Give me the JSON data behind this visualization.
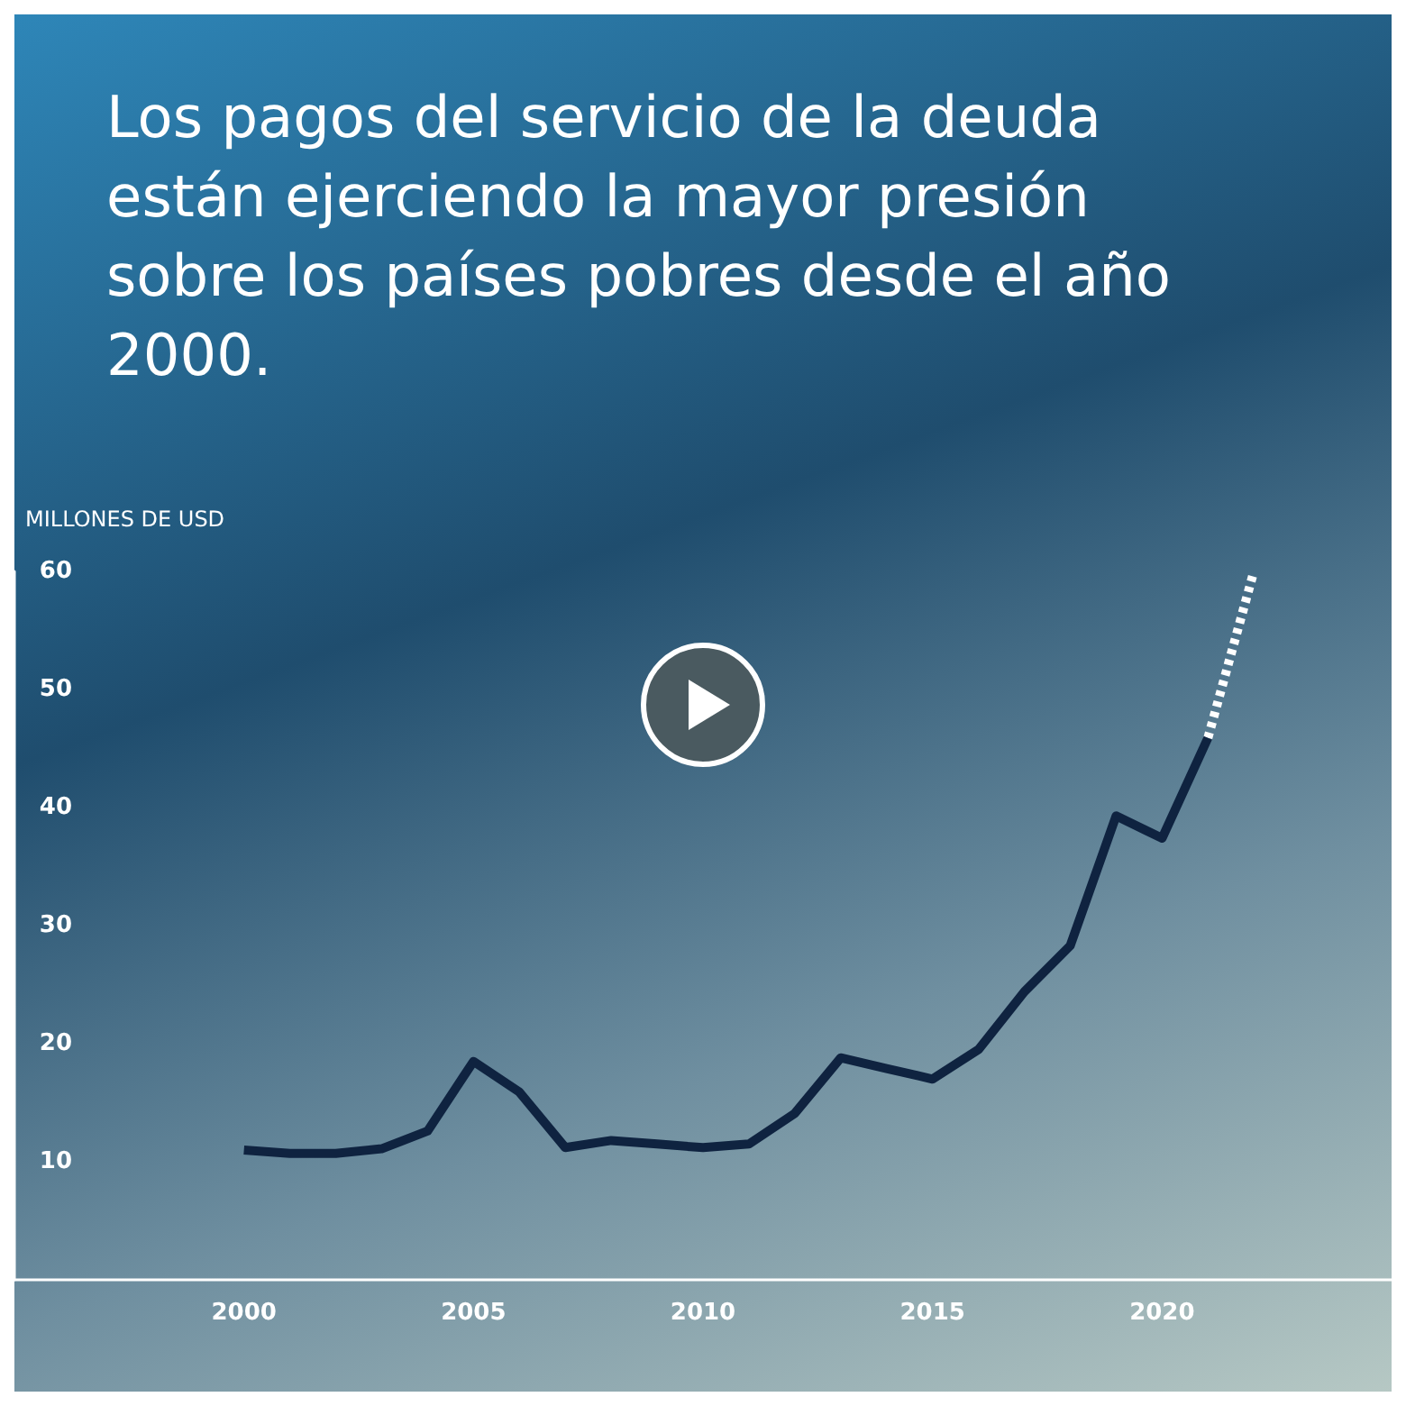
{
  "chart_data": {
    "type": "line",
    "title": "Los pagos del servicio de la deuda están ejerciendo la mayor presión sobre los países pobres desde el año 2000.",
    "ylabel": "MILLONES DE USD",
    "series": [
      {
        "color": "#0f2340",
        "x": [
          2000,
          2001,
          2002,
          2003,
          2004,
          2005,
          2006,
          2007,
          2008,
          2009,
          2010,
          2011,
          2012,
          2013,
          2014,
          2015,
          2016,
          2017,
          2018,
          2019,
          2020,
          2021
        ],
        "values": [
          11.0,
          10.7,
          10.7,
          11.1,
          12.6,
          18.5,
          15.9,
          11.2,
          11.8,
          11.5,
          11.2,
          11.5,
          14.1,
          18.8,
          17.9,
          17.0,
          19.5,
          24.4,
          28.3,
          39.3,
          37.4,
          45.9
        ]
      },
      {
        "color": "#ffffff",
        "line_style": "dashed",
        "x": [
          2021,
          2022
        ],
        "values": [
          45.9,
          60
        ]
      }
    ],
    "xlim": [
      1995,
      2025
    ],
    "xticks": [
      2000,
      2005,
      2010,
      2015,
      2020
    ],
    "ylim": [
      0,
      60
    ],
    "yticks": [
      10,
      20,
      30,
      40,
      50,
      60
    ],
    "marker": "none",
    "line_style": "solid"
  }
}
